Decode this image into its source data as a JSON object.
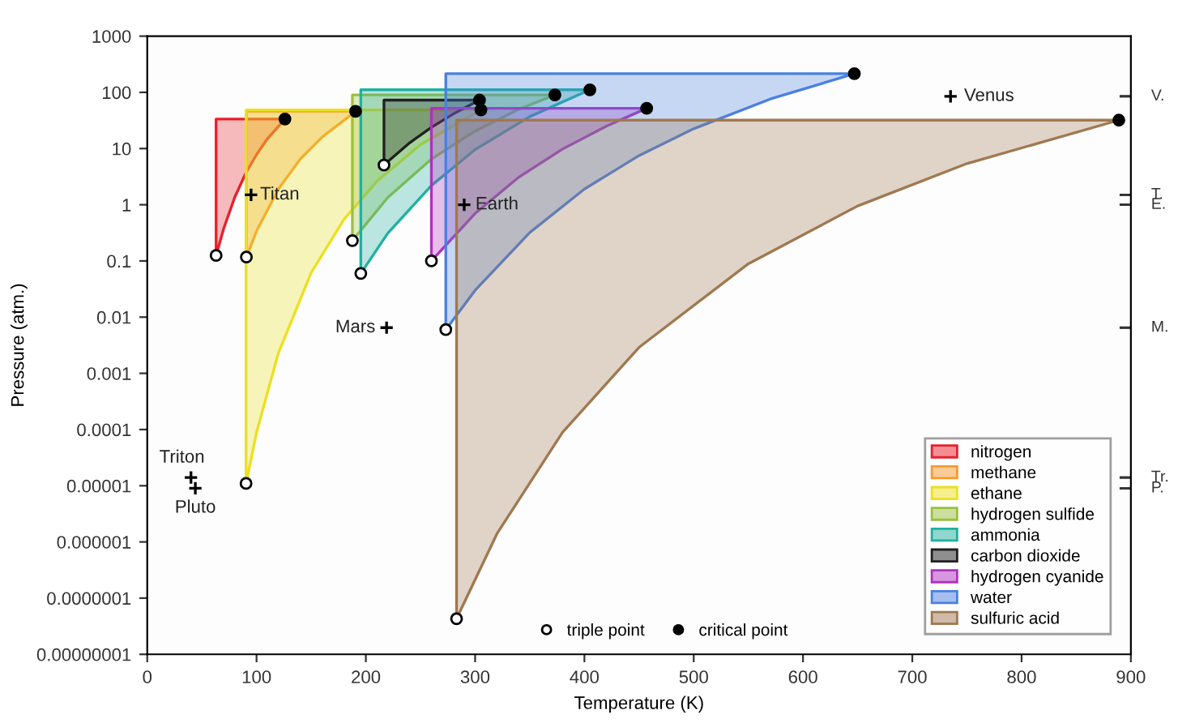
{
  "chart_data": {
    "type": "area",
    "xlabel": "Temperature (K)",
    "ylabel": "Pressure (atm.)",
    "log": "y",
    "xlim": [
      0,
      900
    ],
    "xticks": [
      0,
      100,
      200,
      300,
      400,
      500,
      600,
      700,
      800,
      900
    ],
    "ylim": [
      1e-08,
      1000
    ],
    "yticks": [
      {
        "value": 1e-08,
        "label": "0.00000001"
      },
      {
        "value": 1e-07,
        "label": "0.0000001"
      },
      {
        "value": 1e-06,
        "label": "0.000001"
      },
      {
        "value": 1e-05,
        "label": "0.00001"
      },
      {
        "value": 0.0001,
        "label": "0.0001"
      },
      {
        "value": 0.001,
        "label": "0.001"
      },
      {
        "value": 0.01,
        "label": "0.01"
      },
      {
        "value": 0.1,
        "label": "0.1"
      },
      1,
      10,
      100,
      1000
    ],
    "grid": false,
    "legend": "lower right",
    "series": [
      {
        "name": "nitrogen",
        "color": "#e8202a",
        "x": [
          63,
          63,
          70,
          80,
          90,
          100,
          110,
          126
        ],
        "values": [
          33.5,
          0.125,
          0.38,
          1.35,
          3.6,
          7.8,
          15,
          33.5
        ]
      },
      {
        "name": "methane",
        "color": "#f59a30",
        "x": [
          90.7,
          90.7,
          100,
          120,
          140,
          160,
          190.6
        ],
        "values": [
          46,
          0.117,
          0.34,
          1.9,
          6.5,
          16,
          46
        ]
      },
      {
        "name": "ethane",
        "color": "#ece020",
        "x": [
          90.4,
          90.4,
          100,
          120,
          150,
          180,
          210,
          250,
          305.3
        ],
        "values": [
          48.7,
          1.1e-05,
          8.9e-05,
          0.0023,
          0.062,
          0.55,
          2.6,
          11.7,
          48.7
        ]
      },
      {
        "name": "hydrogen sulfide",
        "color": "#9cc040",
        "x": [
          187.7,
          187.7,
          220,
          260,
          300,
          340,
          373
        ],
        "values": [
          90,
          0.23,
          1.34,
          6.5,
          20.5,
          50,
          90
        ]
      },
      {
        "name": "ammonia",
        "color": "#20b0a0",
        "x": [
          195.4,
          195.4,
          220,
          260,
          300,
          350,
          405
        ],
        "values": [
          111,
          0.06,
          0.31,
          2.2,
          9.6,
          37,
          111
        ]
      },
      {
        "name": "carbon dioxide",
        "color": "#202020",
        "x": [
          216.6,
          216.6,
          240,
          260,
          280,
          304
        ],
        "values": [
          72.8,
          5.1,
          12.6,
          23.8,
          41.3,
          72.8
        ]
      },
      {
        "name": "hydrogen cyanide",
        "color": "#b030c0",
        "x": [
          260,
          260,
          300,
          340,
          380,
          420,
          457
        ],
        "values": [
          52,
          0.1,
          0.7,
          3.1,
          9.8,
          25,
          52
        ]
      },
      {
        "name": "water",
        "color": "#4a80e0",
        "x": [
          273.16,
          273.16,
          300,
          350,
          400,
          450,
          500,
          570,
          647
        ],
        "values": [
          215,
          0.006,
          0.03,
          0.32,
          1.9,
          7.5,
          22.5,
          76,
          215
        ]
      },
      {
        "name": "sulfuric acid",
        "color": "#a07850",
        "x": [
          283,
          283,
          320,
          380,
          450,
          550,
          650,
          750,
          889
        ],
        "values": [
          32,
          4.3e-08,
          1.4e-06,
          8.9e-05,
          0.0029,
          0.089,
          0.95,
          5.4,
          32
        ]
      },
      {
        "type": "scatter",
        "name": "triple point",
        "color": "#ffffff",
        "marker": "circle",
        "x": [
          63,
          90.7,
          90.4,
          187.7,
          195.4,
          216.6,
          260,
          273.16,
          283
        ],
        "values": [
          0.125,
          0.117,
          1.1e-05,
          0.23,
          0.06,
          5.1,
          0.1,
          0.006,
          4.3e-08
        ]
      },
      {
        "type": "scatter",
        "name": "critical point",
        "color": "#000000",
        "marker": "circle",
        "x": [
          126,
          190.6,
          305.3,
          373,
          405,
          304,
          457,
          647,
          889
        ],
        "values": [
          33.5,
          46,
          48.7,
          90,
          111,
          72.8,
          52,
          215,
          32
        ]
      },
      {
        "type": "scatter",
        "color": "#000000",
        "marker": "cross",
        "x": [
          735,
          95,
          290,
          219,
          40,
          44
        ],
        "values": [
          85,
          1.5,
          1,
          0.0065,
          1.4e-05,
          9e-06
        ]
      }
    ],
    "annotations": [
      {
        "text": "Venus",
        "x": 735,
        "y": 85
      },
      {
        "text": "Titan",
        "x": 95,
        "y": 1.5
      },
      {
        "text": "Earth",
        "x": 290,
        "y": 1
      },
      {
        "text": "Mars",
        "x": 219,
        "y": 0.0065
      },
      {
        "text": "Triton",
        "x": 40,
        "y": 1.4e-05
      },
      {
        "text": "Pluto",
        "x": 44,
        "y": 9e-06
      },
      "V.",
      "T.",
      "E.",
      "M.",
      "Tr.",
      "P."
    ]
  }
}
